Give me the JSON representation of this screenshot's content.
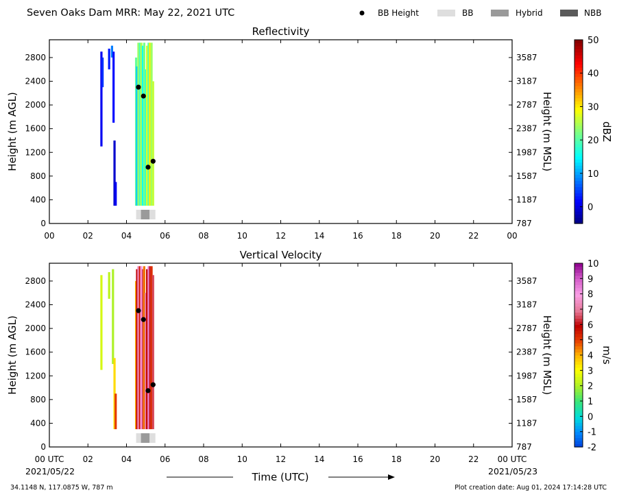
{
  "header": {
    "title": "Seven Oaks Dam MRR:  May 22, 2021 UTC",
    "legend": [
      {
        "label": "BB Height",
        "kind": "dot",
        "color": "#000000"
      },
      {
        "label": "BB",
        "kind": "box",
        "color": "#dedede"
      },
      {
        "label": "Hybrid",
        "kind": "box",
        "color": "#9a9a9a"
      },
      {
        "label": "NBB",
        "kind": "box",
        "color": "#5a5a5a"
      }
    ]
  },
  "footer": {
    "coords": "34.1148 N, 117.0875 W, 787 m",
    "created": "Plot creation date: Aug 01, 2024 17:14:28 UTC",
    "xlabel": "Time (UTC)",
    "start_date": "2021/05/22",
    "end_date": "2021/05/23"
  },
  "chart_data": [
    {
      "type": "heatmap",
      "title": "Reflectivity",
      "ylabel": "Height (m AGL)",
      "y2label": "Height (m MSL)",
      "xlim": [
        0,
        24
      ],
      "ylim": [
        0,
        3100
      ],
      "x_ticks": [
        "00",
        "02",
        "04",
        "06",
        "08",
        "10",
        "12",
        "14",
        "16",
        "18",
        "20",
        "22",
        "00"
      ],
      "y_ticks": [
        0,
        400,
        800,
        1200,
        1600,
        2000,
        2400,
        2800
      ],
      "y2_ticks": [
        787,
        1187,
        1587,
        1987,
        2387,
        2787,
        3187,
        3587
      ],
      "colorbar": {
        "label": "dBZ",
        "min": -5,
        "max": 50,
        "ticks": [
          0,
          10,
          20,
          30,
          40,
          50
        ],
        "palette": "jet"
      },
      "columns": [
        {
          "x": 2.7,
          "y0": 1300,
          "y1": 2900,
          "value": 1
        },
        {
          "x": 2.76,
          "y0": 2300,
          "y1": 2800,
          "value": 4
        },
        {
          "x": 3.1,
          "y0": 2600,
          "y1": 2950,
          "value": 3
        },
        {
          "x": 3.25,
          "y0": 2800,
          "y1": 3000,
          "value": 8
        },
        {
          "x": 3.33,
          "y0": 1700,
          "y1": 2900,
          "value": 2
        },
        {
          "x": 3.38,
          "y0": 300,
          "y1": 1400,
          "value": -1
        },
        {
          "x": 3.44,
          "y0": 300,
          "y1": 700,
          "value": 1
        },
        {
          "x": 4.5,
          "y0": 300,
          "y1": 2800,
          "value": 21
        },
        {
          "x": 4.55,
          "y0": 300,
          "y1": 2650,
          "value": 12
        },
        {
          "x": 4.62,
          "y0": 300,
          "y1": 3050,
          "value": 24
        },
        {
          "x": 4.7,
          "y0": 300,
          "y1": 3050,
          "value": 19
        },
        {
          "x": 4.77,
          "y0": 300,
          "y1": 3050,
          "value": 25
        },
        {
          "x": 4.85,
          "y0": 300,
          "y1": 3000,
          "value": 15
        },
        {
          "x": 4.92,
          "y0": 300,
          "y1": 3050,
          "value": 22
        },
        {
          "x": 5.0,
          "y0": 300,
          "y1": 2600,
          "value": 18
        },
        {
          "x": 5.07,
          "y0": 300,
          "y1": 3000,
          "value": 27
        },
        {
          "x": 5.15,
          "y0": 300,
          "y1": 3050,
          "value": 20
        },
        {
          "x": 5.22,
          "y0": 300,
          "y1": 3050,
          "value": 30
        },
        {
          "x": 5.3,
          "y0": 300,
          "y1": 3050,
          "value": 24
        },
        {
          "x": 5.38,
          "y0": 300,
          "y1": 2400,
          "value": 26
        }
      ],
      "bb_height": [
        {
          "time": 4.62,
          "height": 2300
        },
        {
          "time": 4.88,
          "height": 2150
        },
        {
          "time": 5.12,
          "height": 950
        },
        {
          "time": 5.38,
          "height": 1050
        }
      ],
      "bb_class": [
        {
          "start": 4.5,
          "end": 4.75,
          "class": "BB"
        },
        {
          "start": 4.75,
          "end": 5.2,
          "class": "Hybrid"
        },
        {
          "start": 5.2,
          "end": 5.5,
          "class": "BB"
        }
      ]
    },
    {
      "type": "heatmap",
      "title": "Vertical Velocity",
      "ylabel": "Height (m AGL)",
      "y2label": "Height (m MSL)",
      "xlim": [
        0,
        24
      ],
      "ylim": [
        0,
        3100
      ],
      "x_ticks": [
        "00 UTC",
        "02",
        "04",
        "06",
        "08",
        "10",
        "12",
        "14",
        "16",
        "18",
        "20",
        "22",
        "00 UTC"
      ],
      "y_ticks": [
        0,
        400,
        800,
        1200,
        1600,
        2000,
        2400,
        2800
      ],
      "y2_ticks": [
        787,
        1187,
        1587,
        1987,
        2387,
        2787,
        3187,
        3587
      ],
      "colorbar": {
        "label": "m/s",
        "min": -2,
        "max": 10,
        "ticks": [
          -2,
          -1,
          0,
          1,
          2,
          3,
          4,
          5,
          6,
          7,
          8,
          9,
          10
        ],
        "palette": "velocity"
      },
      "columns": [
        {
          "x": 2.7,
          "y0": 1300,
          "y1": 2900,
          "value": 2.5
        },
        {
          "x": 3.1,
          "y0": 2500,
          "y1": 2950,
          "value": 2.2
        },
        {
          "x": 3.3,
          "y0": 1400,
          "y1": 3000,
          "value": 2.0
        },
        {
          "x": 3.38,
          "y0": 300,
          "y1": 1500,
          "value": 3.5
        },
        {
          "x": 3.44,
          "y0": 300,
          "y1": 900,
          "value": 5.0
        },
        {
          "x": 4.5,
          "y0": 300,
          "y1": 2800,
          "value": 4.0
        },
        {
          "x": 4.55,
          "y0": 300,
          "y1": 3000,
          "value": 6.0
        },
        {
          "x": 4.62,
          "y0": 300,
          "y1": 3050,
          "value": 7.5
        },
        {
          "x": 4.7,
          "y0": 300,
          "y1": 3050,
          "value": 5.5
        },
        {
          "x": 4.77,
          "y0": 300,
          "y1": 3050,
          "value": 8.0
        },
        {
          "x": 4.85,
          "y0": 300,
          "y1": 3000,
          "value": 6.5
        },
        {
          "x": 4.92,
          "y0": 300,
          "y1": 3050,
          "value": 4.5
        },
        {
          "x": 5.0,
          "y0": 300,
          "y1": 2600,
          "value": 7.0
        },
        {
          "x": 5.07,
          "y0": 300,
          "y1": 3000,
          "value": 5.8
        },
        {
          "x": 5.15,
          "y0": 300,
          "y1": 3050,
          "value": 8.3
        },
        {
          "x": 5.22,
          "y0": 300,
          "y1": 3050,
          "value": 6.2
        },
        {
          "x": 5.3,
          "y0": 300,
          "y1": 3050,
          "value": 5.2
        },
        {
          "x": 5.38,
          "y0": 300,
          "y1": 2900,
          "value": 6.5
        }
      ],
      "bb_height": [
        {
          "time": 4.62,
          "height": 2300
        },
        {
          "time": 4.88,
          "height": 2150
        },
        {
          "time": 5.12,
          "height": 950
        },
        {
          "time": 5.38,
          "height": 1050
        }
      ],
      "bb_class": [
        {
          "start": 4.5,
          "end": 4.75,
          "class": "BB"
        },
        {
          "start": 4.75,
          "end": 5.2,
          "class": "Hybrid"
        },
        {
          "start": 5.2,
          "end": 5.5,
          "class": "BB"
        }
      ]
    }
  ]
}
